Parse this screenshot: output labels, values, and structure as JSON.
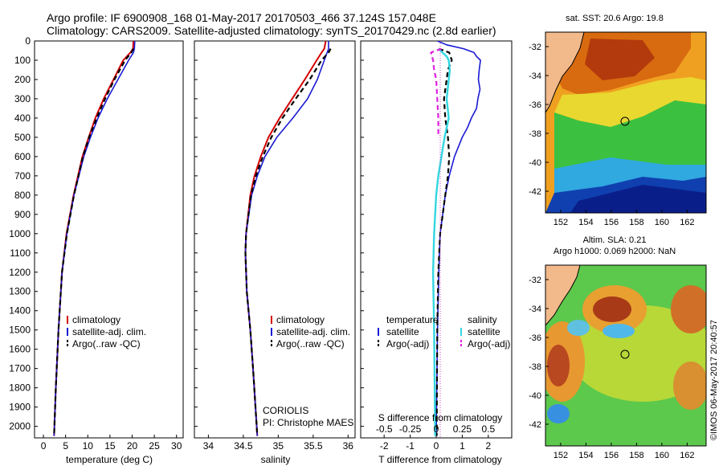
{
  "header": {
    "line1": "Argo profile: IF 6900908_168 01-May-2017 20170503_466 37.124S 157.048E",
    "line2": "Climatology: CARS2009. Satellite-adjusted climatology: synTS_20170429.nc (2.8d earlier)"
  },
  "colors": {
    "climatology": "#d40000",
    "satellite": "#1a1ad4",
    "argo": "#000000",
    "sal_satellite": "#33d6e0",
    "sal_argo": "#e020e0",
    "land": "#f2b98a"
  },
  "depth_ticks": [
    "0",
    "100",
    "200",
    "300",
    "400",
    "500",
    "600",
    "700",
    "800",
    "900",
    "1000",
    "1100",
    "1200",
    "1300",
    "1400",
    "1500",
    "1600",
    "1700",
    "1800",
    "1900",
    "2000"
  ],
  "chart_data": [
    {
      "type": "line",
      "xlabel": "temperature (deg C)",
      "xlim": [
        -2,
        31.5
      ],
      "ylim": [
        2060,
        0
      ],
      "x_ticks": [
        "0",
        "5",
        "10",
        "15",
        "20",
        "25",
        "30"
      ],
      "legend": [
        "climatology",
        "satellite-adj. clim.",
        "Argo(..raw -QC)"
      ],
      "series": [
        {
          "name": "climatology",
          "depth": [
            0,
            40,
            60,
            100,
            200,
            300,
            400,
            500,
            600,
            800,
            1000,
            1200,
            1500,
            1800,
            2050
          ],
          "values": [
            20.3,
            20.2,
            19.6,
            18.0,
            15.8,
            13.6,
            11.7,
            10.2,
            8.8,
            6.8,
            5.2,
            4.2,
            3.4,
            2.8,
            2.4
          ]
        },
        {
          "name": "satellite-adj. clim.",
          "depth": [
            0,
            40,
            60,
            100,
            200,
            300,
            400,
            500,
            600,
            800,
            1000,
            1200,
            1500,
            1800,
            2050
          ],
          "values": [
            20.6,
            20.5,
            20.3,
            19.2,
            16.8,
            14.4,
            12.3,
            10.6,
            9.1,
            6.9,
            5.3,
            4.2,
            3.4,
            2.8,
            2.4
          ]
        },
        {
          "name": "Argo(..raw -QC)",
          "depth": [
            40,
            60,
            100,
            200,
            300,
            400,
            500,
            600,
            800,
            1000,
            1200,
            1500,
            1800,
            2050
          ],
          "values": [
            20.3,
            19.8,
            18.4,
            16.0,
            13.9,
            12.0,
            10.3,
            8.9,
            6.9,
            5.3,
            4.2,
            3.4,
            2.8,
            2.4
          ]
        }
      ]
    },
    {
      "type": "line",
      "xlabel": "salinity",
      "xlim": [
        33.8,
        36.1
      ],
      "ylim": [
        2060,
        0
      ],
      "x_ticks": [
        "34",
        "34.5",
        "35",
        "35.5",
        "36"
      ],
      "legend": [
        "climatology",
        "satellite-adj. clim.",
        "Argo(..raw -QC)"
      ],
      "annotation": [
        "CORIOLIS",
        "PI: Christophe MAES"
      ],
      "series": [
        {
          "name": "climatology",
          "depth": [
            0,
            40,
            60,
            100,
            200,
            300,
            400,
            500,
            600,
            700,
            800,
            1000,
            1100,
            1300,
            1500,
            1700,
            2050
          ],
          "values": [
            35.68,
            35.66,
            35.62,
            35.55,
            35.38,
            35.2,
            35.02,
            34.86,
            34.75,
            34.66,
            34.6,
            34.54,
            34.53,
            34.55,
            34.6,
            34.64,
            34.7
          ]
        },
        {
          "name": "satellite-adj. clim.",
          "depth": [
            0,
            40,
            60,
            100,
            200,
            300,
            400,
            500,
            600,
            700,
            800,
            1000,
            1100,
            1300,
            1500,
            1700,
            2050
          ],
          "values": [
            35.72,
            35.72,
            35.7,
            35.66,
            35.56,
            35.42,
            35.21,
            34.98,
            34.81,
            34.7,
            34.62,
            34.54,
            34.53,
            34.55,
            34.6,
            34.64,
            34.7
          ]
        },
        {
          "name": "Argo(..raw -QC)",
          "depth": [
            40,
            60,
            100,
            200,
            300,
            400,
            500,
            600,
            700,
            800,
            1000,
            1100,
            1300,
            1500,
            1700,
            2050
          ],
          "values": [
            35.75,
            35.72,
            35.62,
            35.45,
            35.25,
            35.06,
            34.9,
            34.78,
            34.68,
            34.61,
            34.54,
            34.53,
            34.55,
            34.6,
            34.64,
            34.7
          ]
        }
      ]
    },
    {
      "type": "line",
      "xlabel": "T difference from climatology",
      "top_xlabel": "S difference from climatology",
      "xlim": [
        -2.9,
        2.9
      ],
      "ylim": [
        2060,
        0
      ],
      "x_ticks": [
        "-2",
        "-1",
        "0",
        "1",
        "2"
      ],
      "top_ticks": [
        "-0.5",
        "-0.25",
        "0",
        "0.25",
        "0.5"
      ],
      "legend": {
        "temperature": "temperature",
        "salinity": "salinity",
        "entries": [
          "satellite",
          "Argo(-adj)",
          "satellite",
          "Argo(-adj)"
        ]
      },
      "series": [
        {
          "name": "satellite",
          "depth": [
            0,
            20,
            40,
            60,
            80,
            100,
            150,
            200,
            250,
            300,
            350,
            400,
            450,
            500,
            600,
            700,
            800,
            900,
            1000,
            1200,
            1500,
            2050
          ],
          "values": [
            0.05,
            0.4,
            1.05,
            1.45,
            1.55,
            1.7,
            1.65,
            1.62,
            1.68,
            1.6,
            1.55,
            1.35,
            1.2,
            1.0,
            0.7,
            0.5,
            0.35,
            0.25,
            0.15,
            0.1,
            0.05,
            0.0
          ]
        },
        {
          "name": "Argo(-adj)",
          "depth": [
            40,
            60,
            100,
            150,
            200,
            300,
            400,
            500,
            600,
            700,
            800,
            900,
            1000,
            1200,
            1500,
            2050
          ],
          "values": [
            0.1,
            0.5,
            0.6,
            0.45,
            0.4,
            0.3,
            0.35,
            0.45,
            0.5,
            0.45,
            0.35,
            0.25,
            0.15,
            0.08,
            0.04,
            0.02
          ]
        },
        {
          "name": "satellite",
          "depth": [
            40,
            60,
            80,
            100,
            150,
            200,
            300,
            400,
            500,
            600,
            700,
            800,
            1000,
            1200,
            1500,
            2050
          ],
          "values": [
            0.02,
            0.06,
            0.1,
            0.12,
            0.13,
            0.12,
            0.1,
            0.12,
            0.08,
            0.05,
            0.02,
            0.0,
            -0.02,
            -0.03,
            -0.02,
            -0.01
          ]
        },
        {
          "name": "Argo(-adj)",
          "depth": [
            40,
            60,
            100,
            150,
            200,
            300,
            400,
            500
          ],
          "values": [
            0.05,
            -0.05,
            -0.03,
            -0.02,
            0.0,
            0.01,
            0.02,
            0.02
          ]
        }
      ]
    }
  ],
  "maps": [
    {
      "title": "sat. SST: 20.6  Argo: 19.8",
      "lat_ticks": [
        "-32",
        "-34",
        "-36",
        "-38",
        "-40",
        "-42"
      ],
      "lon_ticks": [
        "152",
        "154",
        "156",
        "158",
        "160",
        "162"
      ]
    },
    {
      "title_line1": "Altim. SLA: 0.21",
      "title_line2": "Argo h1000: 0.069 h2000: NaN",
      "lat_ticks": [
        "-32",
        "-34",
        "-36",
        "-38",
        "-40",
        "-42"
      ],
      "lon_ticks": [
        "152",
        "154",
        "156",
        "158",
        "160",
        "162"
      ]
    }
  ],
  "side_note": "©IMOS 06-May-2017 20:40:57"
}
